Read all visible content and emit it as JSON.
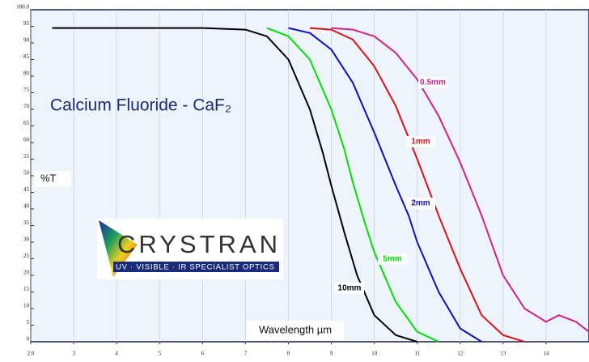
{
  "chart_data": {
    "type": "line",
    "title": "Calcium Fluoride - CaF₂",
    "x_label": "Wavelength µm",
    "y_label": "%T",
    "logo": {
      "name": "CRYSTRAN",
      "tagline": "UV · VISIBLE · IR SPECIALIST OPTICS"
    },
    "xlim": [
      2,
      15
    ],
    "ylim": [
      0,
      100
    ],
    "xticks": [
      {
        "value": 2,
        "label": "2.0"
      },
      3,
      4,
      5,
      6,
      7,
      8,
      9,
      10,
      11,
      12,
      13,
      14
    ],
    "yticks": [
      0,
      5,
      10,
      15,
      20,
      25,
      30,
      35,
      40,
      45,
      50,
      55,
      60,
      65,
      70,
      75,
      80,
      85,
      90,
      95,
      {
        "value": 100,
        "label": "100.0"
      }
    ],
    "grid": "x",
    "series": [
      {
        "name": "10mm",
        "color": "#000000",
        "x": [
          2.5,
          6,
          7,
          7.5,
          8,
          8.5,
          8.8,
          9,
          9.3,
          9.6,
          10,
          10.5,
          11
        ],
        "values": [
          94.5,
          94.5,
          94,
          92,
          85,
          70,
          57,
          47,
          33,
          20,
          8,
          2,
          0
        ]
      },
      {
        "name": "5mm",
        "color": "#00e000",
        "x": [
          7.5,
          8,
          8.5,
          9,
          9.3,
          9.5,
          9.8,
          10,
          10.5,
          11,
          11.5
        ],
        "values": [
          94.5,
          92,
          85,
          70,
          58,
          48,
          35,
          27,
          12,
          3,
          0
        ]
      },
      {
        "name": "2mm",
        "color": "#1010c0",
        "x": [
          8,
          8.5,
          9,
          9.5,
          10,
          10.5,
          10.8,
          11,
          11.5,
          12,
          12.5
        ],
        "values": [
          94.5,
          93,
          88,
          78,
          63,
          47,
          38,
          30,
          15,
          4,
          0
        ]
      },
      {
        "name": "1mm",
        "color": "#dd1010",
        "x": [
          8.5,
          9,
          9.5,
          10,
          10.5,
          11,
          11.5,
          12,
          12.5,
          13,
          13.5
        ],
        "values": [
          94.5,
          94,
          91,
          83,
          71,
          55,
          38,
          22,
          8,
          2,
          0
        ]
      },
      {
        "name": "0.5mm",
        "color": "#d0208c",
        "x": [
          9,
          9.5,
          10,
          10.5,
          11,
          11.5,
          12,
          12.5,
          13,
          13.5,
          14,
          14.3,
          14.7,
          15
        ],
        "values": [
          94.5,
          94,
          92,
          87,
          79,
          68,
          54,
          38,
          20,
          10,
          6,
          8,
          6,
          3
        ]
      }
    ]
  }
}
